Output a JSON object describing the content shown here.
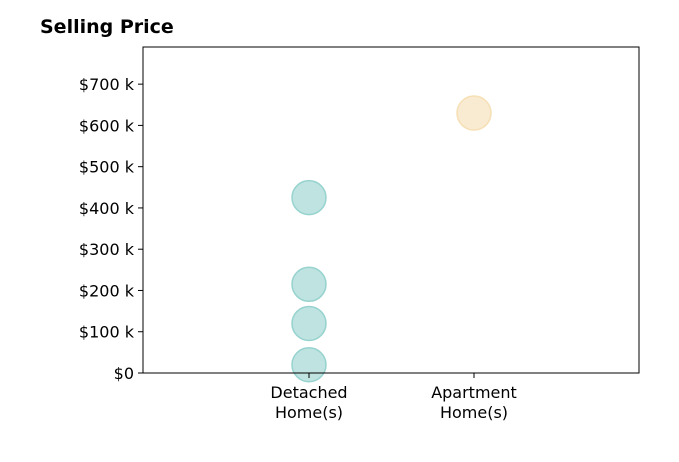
{
  "chart_data": {
    "type": "scatter",
    "title": "Selling Price",
    "xlabel": "",
    "ylabel": "",
    "categories": [
      [
        "Detached",
        "Home(s)"
      ],
      [
        "Apartment",
        "Home(s)"
      ]
    ],
    "ylim": [
      0,
      790
    ],
    "y_ticks": [
      {
        "value": 0,
        "label": "$0"
      },
      {
        "value": 100,
        "label": "$100 k"
      },
      {
        "value": 200,
        "label": "$200 k"
      },
      {
        "value": 300,
        "label": "$300 k"
      },
      {
        "value": 400,
        "label": "$400 k"
      },
      {
        "value": 500,
        "label": "$500 k"
      },
      {
        "value": 600,
        "label": "$600 k"
      },
      {
        "value": 700,
        "label": "$700 k"
      }
    ],
    "series": [
      {
        "category_index": 0,
        "color": "#8fcfcb",
        "values": [
          20,
          120,
          215,
          425
        ]
      },
      {
        "category_index": 1,
        "color": "#f5ddaf",
        "values": [
          630
        ]
      }
    ],
    "grid": false,
    "legend": "none"
  }
}
